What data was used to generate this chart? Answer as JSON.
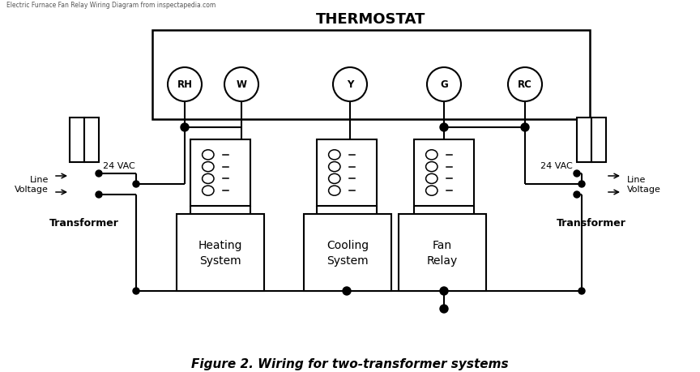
{
  "title": "THERMOSTAT",
  "caption": "Figure 2. Wiring for two-transformer systems",
  "thermostat_terminals": [
    "RH",
    "W",
    "Y",
    "G",
    "RC"
  ],
  "component_labels": [
    "Heating\nSystem",
    "Cooling\nSystem",
    "Fan\nRelay"
  ],
  "bg_color": "#ffffff",
  "line_color": "#000000",
  "line_width": 1.5,
  "top_note": "Electric Furnace Fan Relay Wiring Diagram from inspectapedia.com"
}
